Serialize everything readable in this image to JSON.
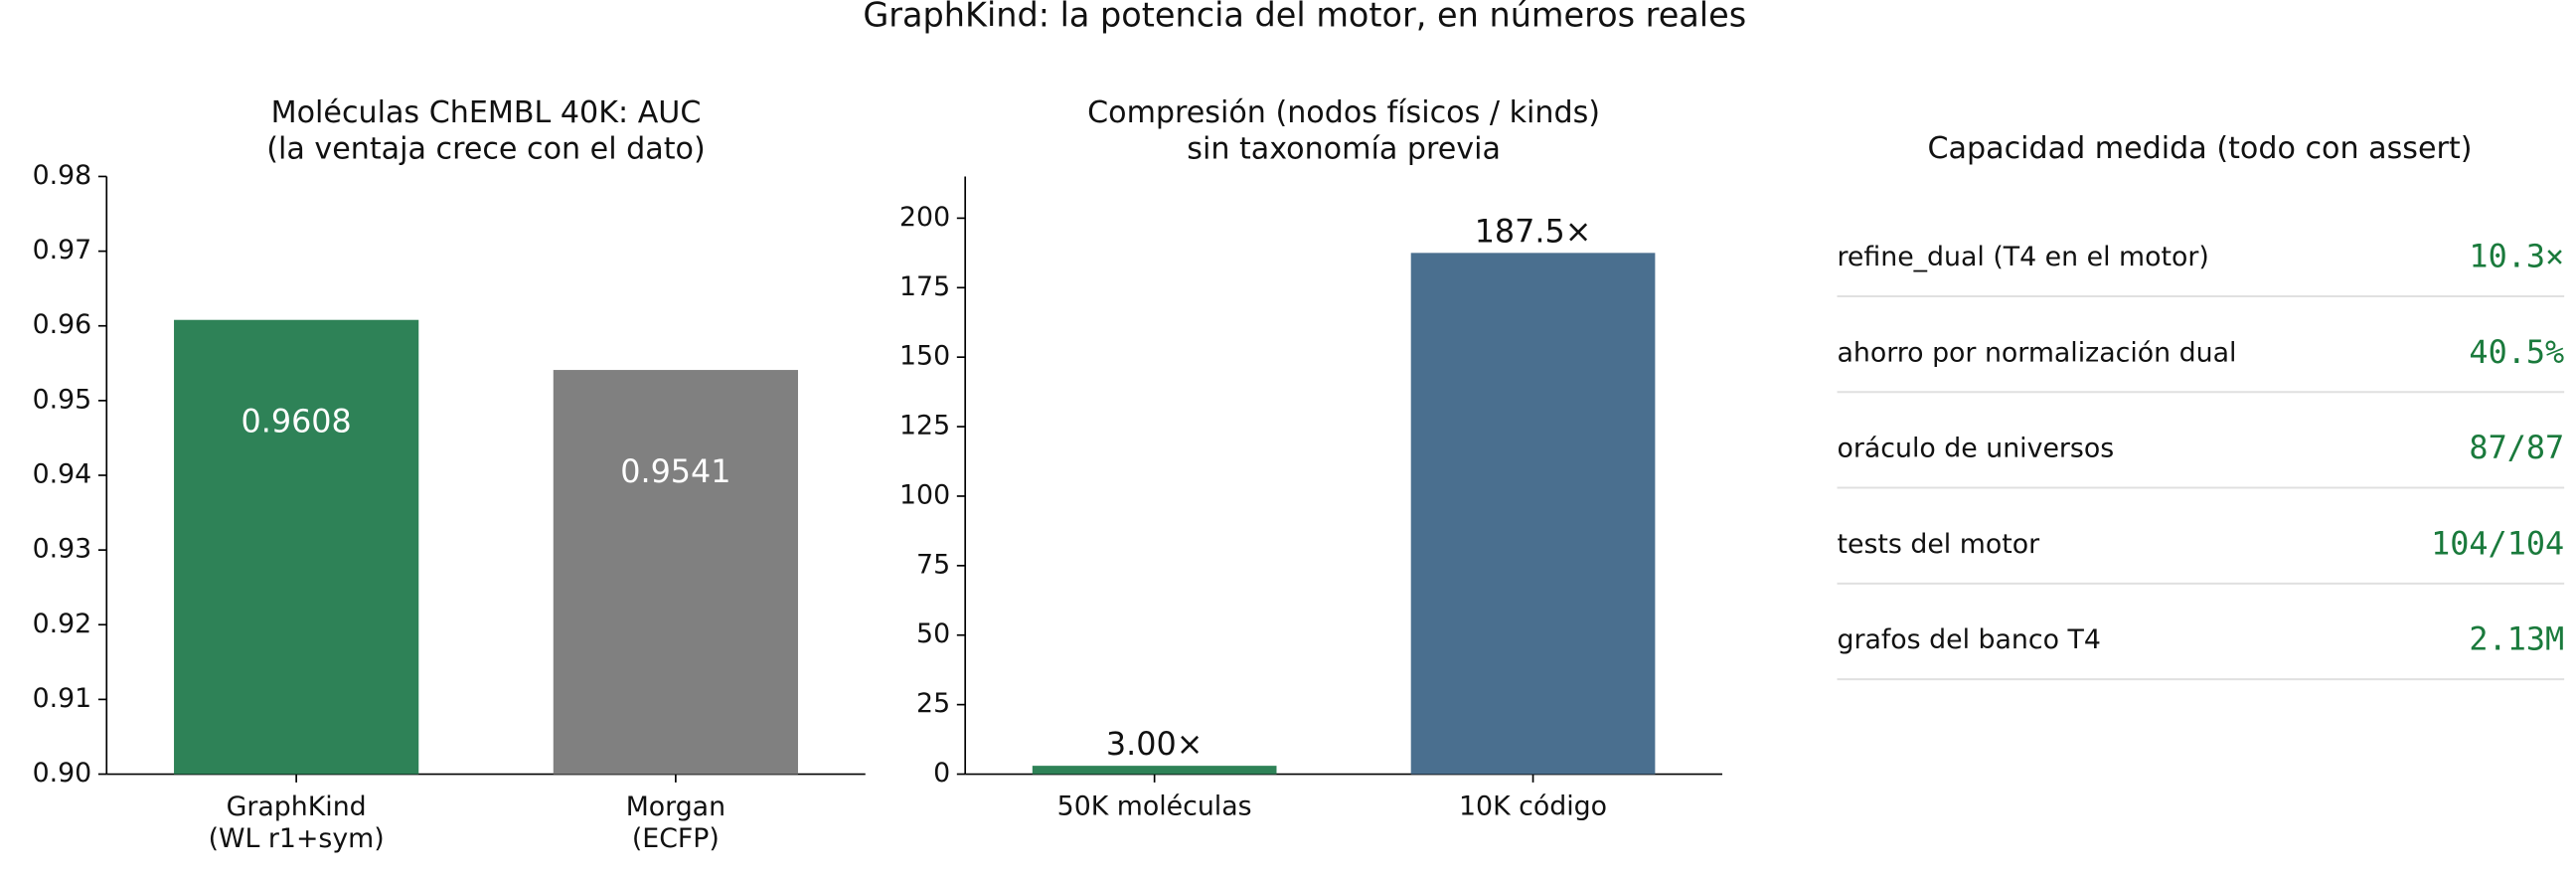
{
  "title": "GraphKind: la potencia del motor, en números reales",
  "chart_data": [
    {
      "type": "bar",
      "title": "Moléculas ChEMBL 40K: AUC\n(la ventaja crece con el dato)",
      "categories": [
        "GraphKind\n(WL r1+sym)",
        "Morgan\n(ECFP)"
      ],
      "values": [
        0.9608,
        0.9541
      ],
      "colors": [
        "#2e8257",
        "#808080"
      ],
      "value_label_position": "inside",
      "ylim": [
        0.9,
        0.98
      ],
      "yticks": [
        {
          "value": 0.9,
          "label": "0.90"
        },
        0.91,
        0.92,
        0.93,
        0.94,
        0.95,
        0.96,
        0.97,
        0.98
      ]
    },
    {
      "type": "bar",
      "title": "Compresión (nodos físicos / kinds)\nsin taxonomía previa",
      "categories": [
        "50K moléculas",
        "10K código"
      ],
      "values": [
        3.0,
        187.5
      ],
      "value_labels": [
        "3.00×",
        "187.5×"
      ],
      "colors": [
        "#2e8257",
        "#4a6f8f"
      ],
      "value_label_position": "above",
      "ylim": [
        0,
        215
      ],
      "yticks": [
        0,
        25,
        50,
        75,
        100,
        125,
        150,
        175,
        200
      ]
    }
  ],
  "metrics": {
    "title": "Capacidad medida (todo con assert)",
    "rows": [
      {
        "label": "refine_dual (T4 en el motor)",
        "value": "10.3×"
      },
      {
        "label": "ahorro por normalización dual",
        "value": "40.5%"
      },
      {
        "label": "oráculo de universos",
        "value": "87/87"
      },
      {
        "label": "tests del motor",
        "value": "104/104"
      },
      {
        "label": "grafos del banco T4",
        "value": "2.13M"
      }
    ]
  }
}
